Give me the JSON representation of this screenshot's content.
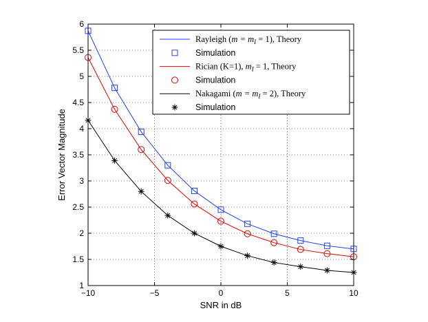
{
  "chart_data": {
    "type": "line",
    "xlabel": "SNR in dB",
    "ylabel": "Error Vector Magnitude",
    "xlim": [
      -10,
      10
    ],
    "ylim": [
      1,
      6
    ],
    "xticks": [
      -10,
      -5,
      0,
      5,
      10
    ],
    "xtick_labels": [
      "−10",
      "−5",
      "0",
      "5",
      "10"
    ],
    "yticks": [
      1,
      1.5,
      2,
      2.5,
      3,
      3.5,
      4,
      4.5,
      5,
      5.5,
      6
    ],
    "ytick_labels": [
      "1",
      "1.5",
      "2",
      "2.5",
      "3",
      "3.5",
      "4",
      "4.5",
      "5",
      "5.5",
      "6"
    ],
    "grid": true,
    "legend_position": "top-right",
    "x": [
      -10,
      -8,
      -6,
      -4,
      -2,
      0,
      2,
      4,
      6,
      8,
      10
    ],
    "series": [
      {
        "name": "Rayleigh (m = m_I = 1), Theory",
        "legend": "Rayleigh (m = m_I = 1), Theory",
        "style": "line",
        "color": "#1f3fff",
        "values": [
          5.87,
          4.78,
          3.94,
          3.3,
          2.81,
          2.45,
          2.18,
          1.99,
          1.86,
          1.76,
          1.7
        ]
      },
      {
        "name": "Rayleigh Simulation",
        "legend": "Simulation",
        "style": "marker",
        "marker": "square",
        "color": "#1f3fff",
        "values": [
          5.87,
          4.78,
          3.94,
          3.3,
          2.81,
          2.45,
          2.18,
          1.99,
          1.86,
          1.76,
          1.7
        ]
      },
      {
        "name": "Rician (K=1), m_I = 1, Theory",
        "legend": "Rician (K=1), m_I = 1, Theory",
        "style": "line",
        "color": "#e00000",
        "values": [
          5.36,
          4.37,
          3.6,
          3.01,
          2.56,
          2.23,
          1.99,
          1.82,
          1.69,
          1.61,
          1.55
        ]
      },
      {
        "name": "Rician Simulation",
        "legend": "Simulation",
        "style": "marker",
        "marker": "circle",
        "color": "#e00000",
        "values": [
          5.36,
          4.37,
          3.6,
          3.01,
          2.56,
          2.23,
          1.99,
          1.82,
          1.69,
          1.61,
          1.55
        ]
      },
      {
        "name": "Nakagami (m = m_I = 2), Theory",
        "legend": "Nakagami (m = m_I = 2), Theory",
        "style": "line",
        "color": "#000000",
        "values": [
          4.16,
          3.39,
          2.8,
          2.34,
          2.0,
          1.75,
          1.57,
          1.44,
          1.36,
          1.29,
          1.25
        ]
      },
      {
        "name": "Nakagami Simulation",
        "legend": "Simulation",
        "style": "marker",
        "marker": "asterisk",
        "color": "#000000",
        "values": [
          4.16,
          3.39,
          2.8,
          2.34,
          2.0,
          1.75,
          1.57,
          1.44,
          1.36,
          1.29,
          1.25
        ]
      }
    ]
  },
  "legend": {
    "entries": [
      {
        "prefix": "Rayleigh (",
        "math": "m = m",
        "sub": "I",
        "suffix": " = 1), Theory"
      },
      {
        "prefix": "Simulation",
        "math": "",
        "sub": "",
        "suffix": ""
      },
      {
        "prefix": "Rician (K=1), ",
        "math": "m",
        "sub": "I",
        "suffix": " = 1, Theory"
      },
      {
        "prefix": "Simulation",
        "math": "",
        "sub": "",
        "suffix": ""
      },
      {
        "prefix": "Nakagami (",
        "math": "m = m",
        "sub": "I",
        "suffix": " = 2), Theory"
      },
      {
        "prefix": "Simulation",
        "math": "",
        "sub": "",
        "suffix": ""
      }
    ]
  }
}
